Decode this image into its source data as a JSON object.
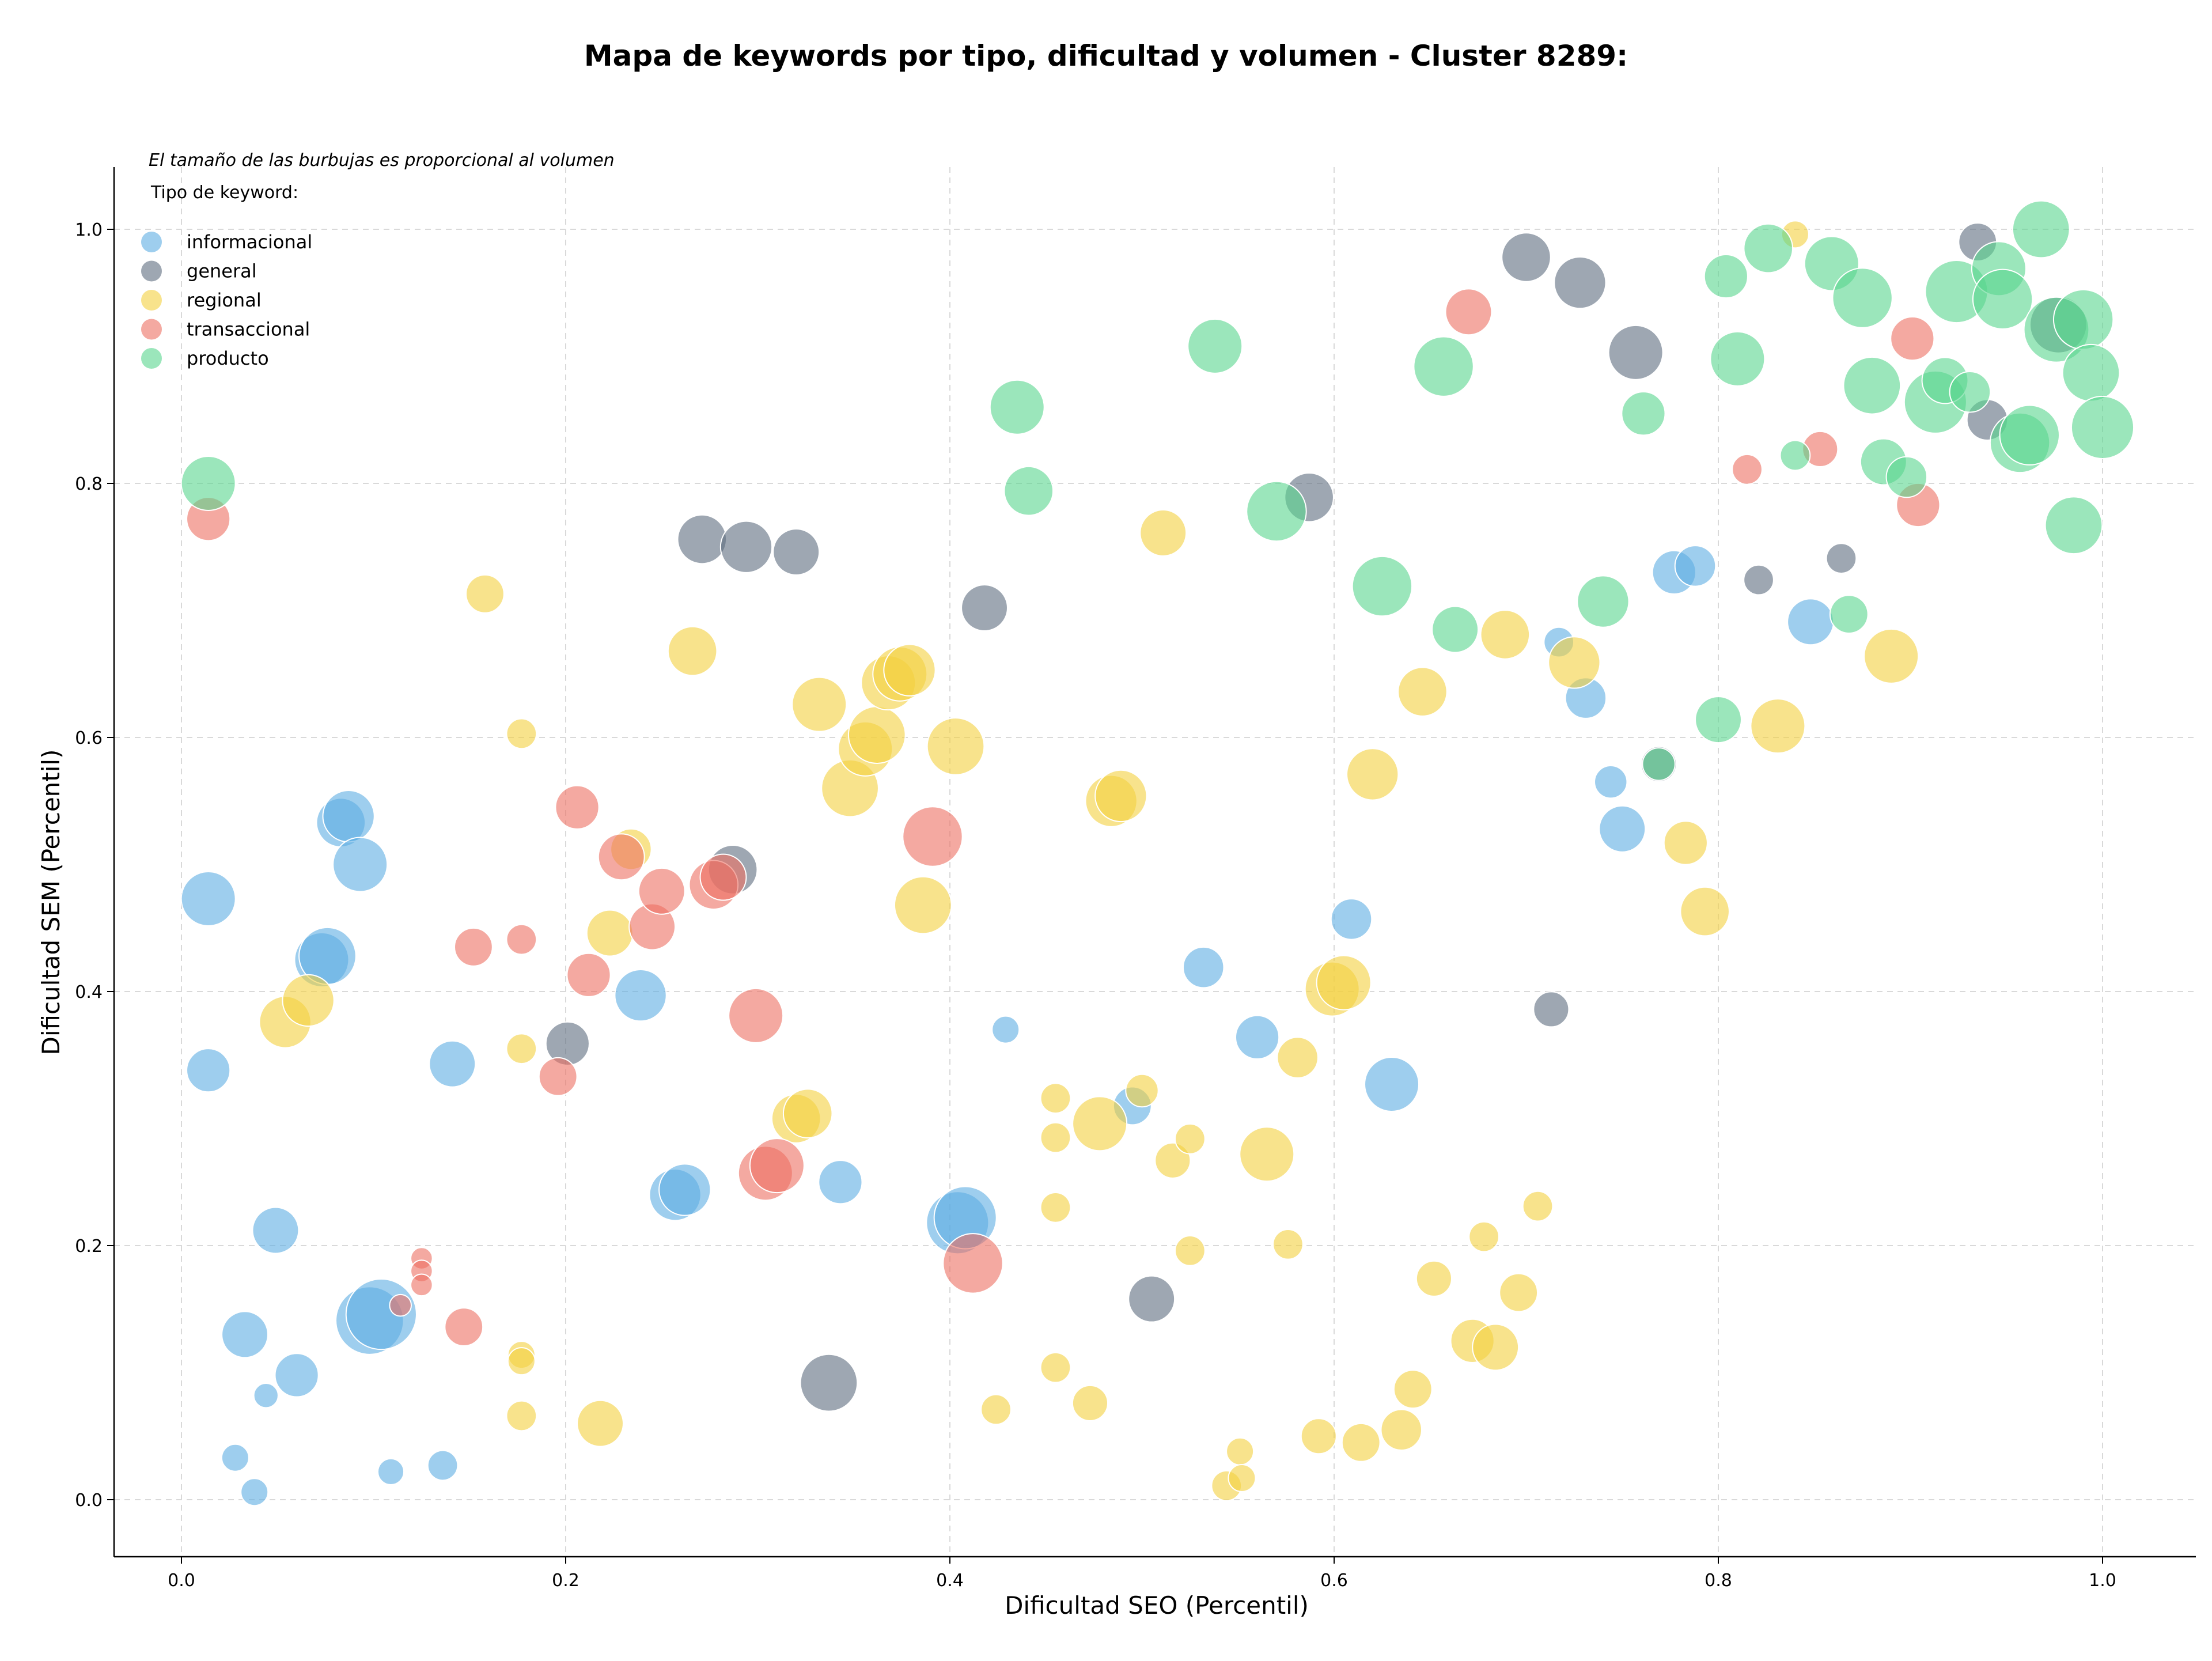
{
  "chart_data": {
    "type": "scatter",
    "title": "Mapa de keywords por tipo, dificultad y volumen - Cluster 8289:",
    "xlabel": "Dificultad SEO (Percentil)",
    "ylabel": "Dificultad SEM (Percentil)",
    "xlim": [
      -0.035,
      1.047
    ],
    "ylim": [
      -0.043,
      1.05
    ],
    "xticks": [
      "0.0",
      "0.2",
      "0.4",
      "0.6",
      "0.8",
      "1.0"
    ],
    "yticks": [
      "0.0",
      "0.2",
      "0.4",
      "0.6",
      "0.8",
      "1.0"
    ],
    "grid": true,
    "size_note": "El tamaño de las burbujas es proporcional al volumen",
    "legend_title": "Tipo de keyword:",
    "legend_position": "top-left",
    "series": [
      {
        "name": "informacional",
        "color": "#5dade2",
        "points": [
          [
            0.014,
            0.473,
            1.0
          ],
          [
            0.014,
            0.338,
            0.8
          ],
          [
            0.083,
            0.533,
            0.9
          ],
          [
            0.087,
            0.538,
            0.95
          ],
          [
            0.093,
            0.5,
            1.0
          ],
          [
            0.073,
            0.425,
            1.0
          ],
          [
            0.076,
            0.428,
            1.05
          ],
          [
            0.049,
            0.212,
            0.85
          ],
          [
            0.033,
            0.13,
            0.85
          ],
          [
            0.06,
            0.098,
            0.8
          ],
          [
            0.044,
            0.082,
            0.45
          ],
          [
            0.028,
            0.033,
            0.5
          ],
          [
            0.038,
            0.006,
            0.5
          ],
          [
            0.109,
            0.022,
            0.48
          ],
          [
            0.136,
            0.027,
            0.55
          ],
          [
            0.098,
            0.141,
            1.25
          ],
          [
            0.104,
            0.146,
            1.3
          ],
          [
            0.141,
            0.343,
            0.85
          ],
          [
            0.239,
            0.397,
            0.95
          ],
          [
            0.257,
            0.24,
            0.95
          ],
          [
            0.262,
            0.244,
            0.95
          ],
          [
            0.343,
            0.25,
            0.8
          ],
          [
            0.404,
            0.218,
            1.15
          ],
          [
            0.408,
            0.222,
            1.15
          ],
          [
            0.429,
            0.37,
            0.5
          ],
          [
            0.495,
            0.31,
            0.7
          ],
          [
            0.532,
            0.419,
            0.75
          ],
          [
            0.56,
            0.364,
            0.8
          ],
          [
            0.609,
            0.457,
            0.75
          ],
          [
            0.63,
            0.327,
            1.0
          ],
          [
            0.717,
            0.675,
            0.55
          ],
          [
            0.731,
            0.631,
            0.75
          ],
          [
            0.744,
            0.565,
            0.6
          ],
          [
            0.75,
            0.528,
            0.85
          ],
          [
            0.777,
            0.73,
            0.8
          ],
          [
            0.788,
            0.735,
            0.75
          ],
          [
            0.848,
            0.691,
            0.85
          ]
        ]
      },
      {
        "name": "general",
        "color": "#5d6d7e",
        "points": [
          [
            0.201,
            0.359,
            0.8
          ],
          [
            0.271,
            0.756,
            0.9
          ],
          [
            0.294,
            0.75,
            0.95
          ],
          [
            0.32,
            0.746,
            0.85
          ],
          [
            0.287,
            0.496,
            0.9
          ],
          [
            0.418,
            0.702,
            0.85
          ],
          [
            0.337,
            0.092,
            1.05
          ],
          [
            0.505,
            0.158,
            0.85
          ],
          [
            0.587,
            0.789,
            0.9
          ],
          [
            0.7,
            0.978,
            0.9
          ],
          [
            0.728,
            0.958,
            0.95
          ],
          [
            0.757,
            0.903,
            1.0
          ],
          [
            0.713,
            0.386,
            0.65
          ],
          [
            0.769,
            0.579,
            0.65
          ],
          [
            0.821,
            0.724,
            0.55
          ],
          [
            0.864,
            0.741,
            0.55
          ],
          [
            0.935,
            0.99,
            0.7
          ],
          [
            0.94,
            0.85,
            0.75
          ],
          [
            0.977,
            0.925,
            1.05
          ]
        ]
      },
      {
        "name": "regional",
        "color": "#f4d03f",
        "points": [
          [
            0.054,
            0.376,
            0.95
          ],
          [
            0.066,
            0.393,
            0.95
          ],
          [
            0.158,
            0.713,
            0.7
          ],
          [
            0.177,
            0.603,
            0.55
          ],
          [
            0.177,
            0.355,
            0.55
          ],
          [
            0.177,
            0.114,
            0.5
          ],
          [
            0.177,
            0.109,
            0.5
          ],
          [
            0.177,
            0.066,
            0.55
          ],
          [
            0.218,
            0.06,
            0.85
          ],
          [
            0.223,
            0.446,
            0.85
          ],
          [
            0.234,
            0.512,
            0.75
          ],
          [
            0.266,
            0.668,
            0.9
          ],
          [
            0.32,
            0.3,
            0.9
          ],
          [
            0.326,
            0.304,
            0.9
          ],
          [
            0.332,
            0.626,
            1.0
          ],
          [
            0.348,
            0.56,
            1.05
          ],
          [
            0.356,
            0.591,
            1.0
          ],
          [
            0.362,
            0.602,
            1.05
          ],
          [
            0.368,
            0.643,
            1.0
          ],
          [
            0.374,
            0.65,
            1.0
          ],
          [
            0.379,
            0.653,
            0.95
          ],
          [
            0.386,
            0.468,
            1.05
          ],
          [
            0.403,
            0.593,
            1.05
          ],
          [
            0.424,
            0.071,
            0.55
          ],
          [
            0.455,
            0.316,
            0.55
          ],
          [
            0.455,
            0.285,
            0.55
          ],
          [
            0.455,
            0.23,
            0.55
          ],
          [
            0.455,
            0.104,
            0.55
          ],
          [
            0.473,
            0.076,
            0.65
          ],
          [
            0.478,
            0.296,
            1.0
          ],
          [
            0.484,
            0.55,
            0.95
          ],
          [
            0.489,
            0.554,
            0.95
          ],
          [
            0.5,
            0.322,
            0.6
          ],
          [
            0.511,
            0.761,
            0.85
          ],
          [
            0.516,
            0.267,
            0.65
          ],
          [
            0.525,
            0.284,
            0.55
          ],
          [
            0.525,
            0.196,
            0.55
          ],
          [
            0.544,
            0.011,
            0.55
          ],
          [
            0.551,
            0.038,
            0.5
          ],
          [
            0.552,
            0.017,
            0.5
          ],
          [
            0.565,
            0.272,
            1.0
          ],
          [
            0.576,
            0.201,
            0.55
          ],
          [
            0.581,
            0.348,
            0.75
          ],
          [
            0.592,
            0.05,
            0.65
          ],
          [
            0.599,
            0.402,
            1.0
          ],
          [
            0.605,
            0.407,
            1.0
          ],
          [
            0.614,
            0.045,
            0.7
          ],
          [
            0.62,
            0.571,
            0.95
          ],
          [
            0.635,
            0.055,
            0.75
          ],
          [
            0.641,
            0.087,
            0.7
          ],
          [
            0.646,
            0.636,
            0.9
          ],
          [
            0.652,
            0.174,
            0.65
          ],
          [
            0.672,
            0.125,
            0.8
          ],
          [
            0.678,
            0.207,
            0.55
          ],
          [
            0.684,
            0.12,
            0.85
          ],
          [
            0.689,
            0.681,
            0.9
          ],
          [
            0.696,
            0.163,
            0.7
          ],
          [
            0.706,
            0.231,
            0.55
          ],
          [
            0.725,
            0.659,
            0.95
          ],
          [
            0.783,
            0.517,
            0.8
          ],
          [
            0.793,
            0.463,
            0.9
          ],
          [
            0.831,
            0.609,
            1.0
          ],
          [
            0.84,
            0.996,
            0.5
          ],
          [
            0.89,
            0.664,
            1.0
          ]
        ]
      },
      {
        "name": "transaccional",
        "color": "#ec7063",
        "points": [
          [
            0.014,
            0.772,
            0.8
          ],
          [
            0.114,
            0.153,
            0.4
          ],
          [
            0.125,
            0.19,
            0.4
          ],
          [
            0.125,
            0.18,
            0.4
          ],
          [
            0.125,
            0.169,
            0.4
          ],
          [
            0.147,
            0.136,
            0.7
          ],
          [
            0.152,
            0.435,
            0.7
          ],
          [
            0.177,
            0.441,
            0.55
          ],
          [
            0.196,
            0.333,
            0.7
          ],
          [
            0.206,
            0.545,
            0.8
          ],
          [
            0.212,
            0.413,
            0.8
          ],
          [
            0.229,
            0.506,
            0.85
          ],
          [
            0.245,
            0.451,
            0.85
          ],
          [
            0.25,
            0.479,
            0.85
          ],
          [
            0.277,
            0.484,
            0.9
          ],
          [
            0.282,
            0.49,
            0.85
          ],
          [
            0.299,
            0.381,
            1.0
          ],
          [
            0.304,
            0.257,
            1.0
          ],
          [
            0.31,
            0.263,
            1.0
          ],
          [
            0.391,
            0.522,
            1.1
          ],
          [
            0.412,
            0.186,
            1.1
          ],
          [
            0.67,
            0.935,
            0.85
          ],
          [
            0.815,
            0.811,
            0.55
          ],
          [
            0.853,
            0.827,
            0.65
          ],
          [
            0.901,
            0.914,
            0.8
          ],
          [
            0.904,
            0.783,
            0.8
          ]
        ]
      },
      {
        "name": "producto",
        "color": "#58d68d",
        "points": [
          [
            0.014,
            0.8,
            1.0
          ],
          [
            0.435,
            0.86,
            1.0
          ],
          [
            0.441,
            0.794,
            0.9
          ],
          [
            0.538,
            0.908,
            1.0
          ],
          [
            0.57,
            0.778,
            1.1
          ],
          [
            0.625,
            0.719,
            1.1
          ],
          [
            0.657,
            0.892,
            1.1
          ],
          [
            0.663,
            0.685,
            0.85
          ],
          [
            0.74,
            0.707,
            0.95
          ],
          [
            0.761,
            0.855,
            0.8
          ],
          [
            0.769,
            0.579,
            0.6
          ],
          [
            0.8,
            0.614,
            0.85
          ],
          [
            0.804,
            0.963,
            0.8
          ],
          [
            0.81,
            0.898,
            1.0
          ],
          [
            0.826,
            0.985,
            0.9
          ],
          [
            0.84,
            0.822,
            0.55
          ],
          [
            0.859,
            0.973,
            1.0
          ],
          [
            0.868,
            0.697,
            0.7
          ],
          [
            0.875,
            0.946,
            1.1
          ],
          [
            0.88,
            0.877,
            1.05
          ],
          [
            0.886,
            0.817,
            0.85
          ],
          [
            0.898,
            0.805,
            0.75
          ],
          [
            0.913,
            0.864,
            1.15
          ],
          [
            0.918,
            0.881,
            0.85
          ],
          [
            0.924,
            0.951,
            1.15
          ],
          [
            0.931,
            0.872,
            0.75
          ],
          [
            0.946,
            0.969,
            1.0
          ],
          [
            0.948,
            0.945,
            1.1
          ],
          [
            0.957,
            0.832,
            1.1
          ],
          [
            0.962,
            0.838,
            1.1
          ],
          [
            0.968,
            1.0,
            1.05
          ],
          [
            0.976,
            0.921,
            1.2
          ],
          [
            0.985,
            0.767,
            1.05
          ],
          [
            0.99,
            0.929,
            1.1
          ],
          [
            0.994,
            0.887,
            1.05
          ],
          [
            1.0,
            0.844,
            1.15
          ]
        ]
      }
    ]
  }
}
